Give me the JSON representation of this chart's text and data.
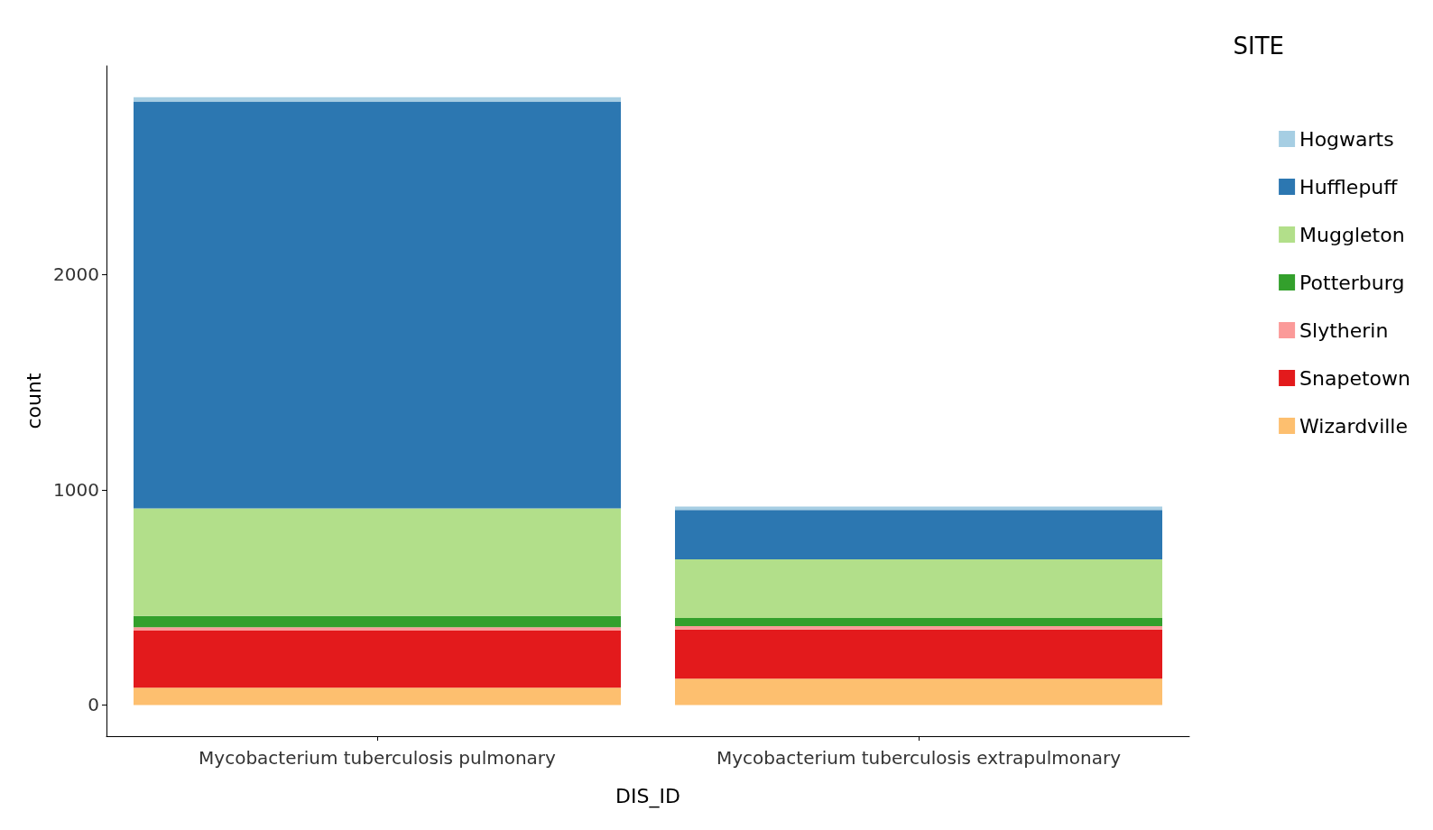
{
  "chart_data": {
    "type": "bar",
    "stacked": true,
    "xlabel": "DIS_ID",
    "ylabel": "count",
    "legend_title": "SITE",
    "legend": "right",
    "grid": false,
    "categories": [
      "Mycobacterium tuberculosis pulmonary",
      "Mycobacterium tuberculosis extrapulmonary"
    ],
    "ylim": [
      -145,
      2970
    ],
    "yticks": [
      0,
      1000,
      2000
    ],
    "series": [
      {
        "name": "Wizardville",
        "color": "#fdbf6f",
        "values": [
          80,
          122
        ]
      },
      {
        "name": "Snapetown",
        "color": "#e31a1c",
        "values": [
          265,
          229
        ]
      },
      {
        "name": "Slytherin",
        "color": "#fb9a99",
        "values": [
          16,
          16
        ]
      },
      {
        "name": "Potterburg",
        "color": "#33a02c",
        "values": [
          53,
          37
        ]
      },
      {
        "name": "Muggleton",
        "color": "#b2df8a",
        "values": [
          500,
          273
        ]
      },
      {
        "name": "Hufflepuff",
        "color": "#2c77b1",
        "values": [
          1890,
          229
        ]
      },
      {
        "name": "Hogwarts",
        "color": "#a6cee3",
        "values": [
          20,
          16
        ]
      }
    ]
  }
}
